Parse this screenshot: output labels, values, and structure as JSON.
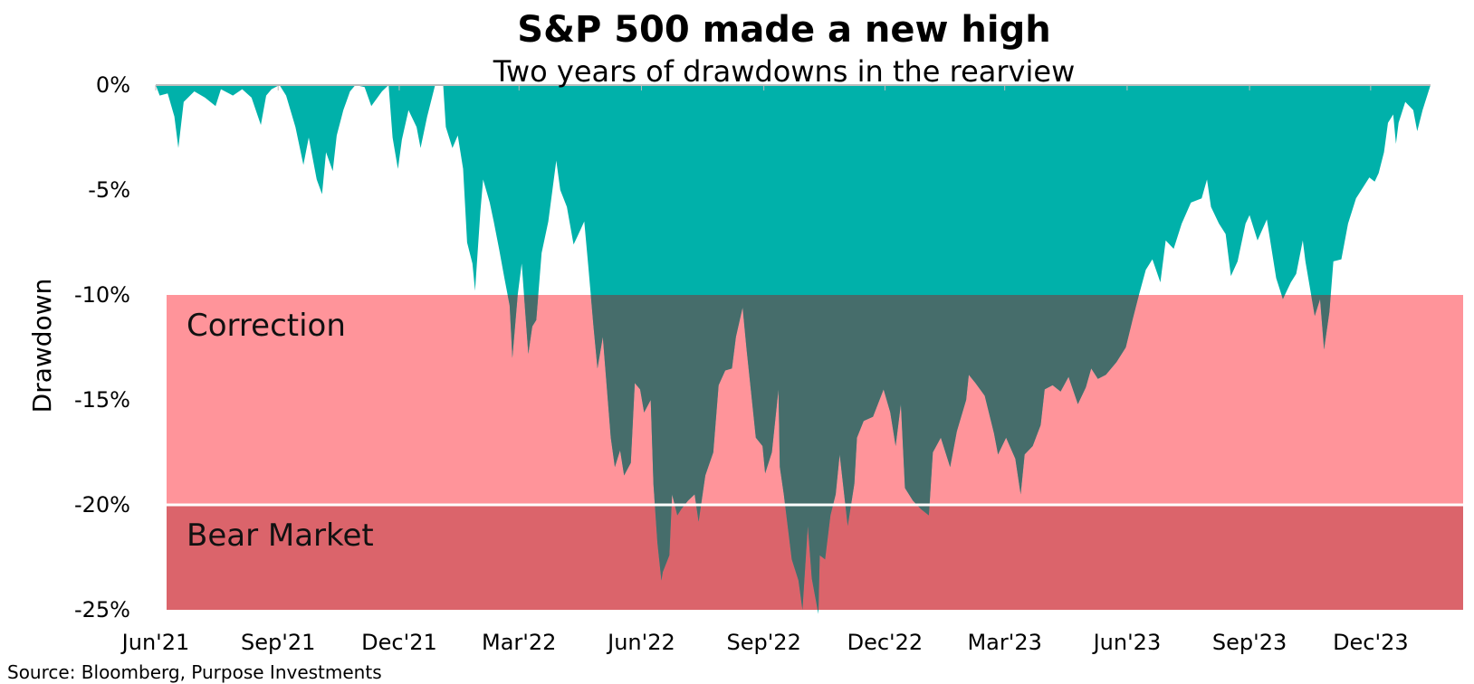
{
  "chart_data": {
    "type": "area",
    "title": "S&P 500 made a new high",
    "subtitle": "Two years of drawdowns in the rearview",
    "xlabel": "",
    "ylabel": "Drawdown",
    "ylim": [
      -25,
      0
    ],
    "yticks": [
      {
        "value": 0,
        "label": "0%"
      },
      {
        "value": -5,
        "label": "-5%"
      },
      {
        "value": -10,
        "label": "-10%"
      },
      {
        "value": -15,
        "label": "-15%"
      },
      {
        "value": -20,
        "label": "-20%"
      },
      {
        "value": -25,
        "label": "-25%"
      }
    ],
    "xlim": [
      "2021-06-01",
      "2024-01-15"
    ],
    "xticks": [
      {
        "date": "2021-06-01",
        "label": "Jun'21"
      },
      {
        "date": "2021-09-01",
        "label": "Sep'21"
      },
      {
        "date": "2021-12-01",
        "label": "Dec'21"
      },
      {
        "date": "2022-03-01",
        "label": "Mar'22"
      },
      {
        "date": "2022-06-01",
        "label": "Jun'22"
      },
      {
        "date": "2022-09-01",
        "label": "Sep'22"
      },
      {
        "date": "2022-12-01",
        "label": "Dec'22"
      },
      {
        "date": "2023-03-01",
        "label": "Mar'23"
      },
      {
        "date": "2023-06-01",
        "label": "Jun'23"
      },
      {
        "date": "2023-09-01",
        "label": "Sep'23"
      },
      {
        "date": "2023-12-01",
        "label": "Dec'23"
      }
    ],
    "zones": [
      {
        "label": "Correction",
        "from": -10,
        "to": -20,
        "color": "#ff949a"
      },
      {
        "label": "Bear Market",
        "from": -20,
        "to": -25,
        "color": "#db646b"
      }
    ],
    "series": [
      {
        "color": "#00b1aa",
        "points": [
          [
            "2021-06-01",
            0
          ],
          [
            "2021-06-04",
            -0.5
          ],
          [
            "2021-06-10",
            -0.4
          ],
          [
            "2021-06-15",
            -1.5
          ],
          [
            "2021-06-18",
            -3
          ],
          [
            "2021-06-22",
            -0.8
          ],
          [
            "2021-06-30",
            -0.3
          ],
          [
            "2021-07-08",
            -0.6
          ],
          [
            "2021-07-16",
            -1
          ],
          [
            "2021-07-20",
            -0.2
          ],
          [
            "2021-07-29",
            -0.5
          ],
          [
            "2021-08-05",
            -0.2
          ],
          [
            "2021-08-12",
            -0.6
          ],
          [
            "2021-08-19",
            -1.9
          ],
          [
            "2021-08-23",
            -0.5
          ],
          [
            "2021-08-27",
            -0.2
          ],
          [
            "2021-09-02",
            0
          ],
          [
            "2021-09-07",
            -0.5
          ],
          [
            "2021-09-14",
            -2
          ],
          [
            "2021-09-20",
            -3.8
          ],
          [
            "2021-09-24",
            -2.5
          ],
          [
            "2021-09-30",
            -4.5
          ],
          [
            "2021-10-04",
            -5.2
          ],
          [
            "2021-10-07",
            -3.2
          ],
          [
            "2021-10-12",
            -4.1
          ],
          [
            "2021-10-15",
            -2.4
          ],
          [
            "2021-10-20",
            -1.2
          ],
          [
            "2021-10-25",
            -0.3
          ],
          [
            "2021-10-29",
            0
          ],
          [
            "2021-11-05",
            -0.1
          ],
          [
            "2021-11-10",
            -1
          ],
          [
            "2021-11-18",
            -0.3
          ],
          [
            "2021-11-23",
            0
          ],
          [
            "2021-11-26",
            -2.5
          ],
          [
            "2021-11-30",
            -4
          ],
          [
            "2021-12-03",
            -2.6
          ],
          [
            "2021-12-08",
            -1.2
          ],
          [
            "2021-12-14",
            -2
          ],
          [
            "2021-12-17",
            -3
          ],
          [
            "2021-12-22",
            -1.5
          ],
          [
            "2021-12-28",
            0
          ],
          [
            "2022-01-03",
            0
          ],
          [
            "2022-01-05",
            -2
          ],
          [
            "2022-01-10",
            -3
          ],
          [
            "2022-01-14",
            -2.4
          ],
          [
            "2022-01-18",
            -4
          ],
          [
            "2022-01-21",
            -7.5
          ],
          [
            "2022-01-25",
            -8.5
          ],
          [
            "2022-01-27",
            -9.8
          ],
          [
            "2022-01-31",
            -6
          ],
          [
            "2022-02-02",
            -4.5
          ],
          [
            "2022-02-07",
            -5.6
          ],
          [
            "2022-02-10",
            -6.5
          ],
          [
            "2022-02-14",
            -7.8
          ],
          [
            "2022-02-18",
            -9.2
          ],
          [
            "2022-02-22",
            -10.5
          ],
          [
            "2022-02-24",
            -13
          ],
          [
            "2022-02-28",
            -10
          ],
          [
            "2022-03-03",
            -8.5
          ],
          [
            "2022-03-08",
            -12.8
          ],
          [
            "2022-03-11",
            -11.5
          ],
          [
            "2022-03-14",
            -11.2
          ],
          [
            "2022-03-18",
            -8
          ],
          [
            "2022-03-23",
            -6.5
          ],
          [
            "2022-03-29",
            -3.6
          ],
          [
            "2022-04-01",
            -5
          ],
          [
            "2022-04-06",
            -5.8
          ],
          [
            "2022-04-11",
            -7.6
          ],
          [
            "2022-04-14",
            -7.2
          ],
          [
            "2022-04-19",
            -6.5
          ],
          [
            "2022-04-22",
            -8.6
          ],
          [
            "2022-04-26",
            -11.5
          ],
          [
            "2022-04-29",
            -13.5
          ],
          [
            "2022-05-03",
            -12
          ],
          [
            "2022-05-06",
            -14.4
          ],
          [
            "2022-05-09",
            -16.8
          ],
          [
            "2022-05-12",
            -18.2
          ],
          [
            "2022-05-16",
            -17.4
          ],
          [
            "2022-05-19",
            -18.6
          ],
          [
            "2022-05-24",
            -18
          ],
          [
            "2022-05-27",
            -14.2
          ],
          [
            "2022-05-31",
            -14.5
          ],
          [
            "2022-06-03",
            -15.6
          ],
          [
            "2022-06-08",
            -15
          ],
          [
            "2022-06-10",
            -19
          ],
          [
            "2022-06-13",
            -21.8
          ],
          [
            "2022-06-16",
            -23.6
          ],
          [
            "2022-06-17",
            -23.2
          ],
          [
            "2022-06-22",
            -22.4
          ],
          [
            "2022-06-24",
            -19.5
          ],
          [
            "2022-06-28",
            -20.5
          ],
          [
            "2022-07-01",
            -20.2
          ],
          [
            "2022-07-06",
            -19.8
          ],
          [
            "2022-07-11",
            -19.5
          ],
          [
            "2022-07-14",
            -20.8
          ],
          [
            "2022-07-19",
            -18.6
          ],
          [
            "2022-07-25",
            -17.5
          ],
          [
            "2022-07-29",
            -14.3
          ],
          [
            "2022-08-03",
            -13.6
          ],
          [
            "2022-08-08",
            -13.5
          ],
          [
            "2022-08-11",
            -12
          ],
          [
            "2022-08-16",
            -10.6
          ],
          [
            "2022-08-19",
            -12.6
          ],
          [
            "2022-08-22",
            -14.4
          ],
          [
            "2022-08-26",
            -16.8
          ],
          [
            "2022-08-31",
            -17.2
          ],
          [
            "2022-09-02",
            -18.5
          ],
          [
            "2022-09-07",
            -17.5
          ],
          [
            "2022-09-12",
            -14.5
          ],
          [
            "2022-09-13",
            -18.2
          ],
          [
            "2022-09-16",
            -19.5
          ],
          [
            "2022-09-22",
            -22.6
          ],
          [
            "2022-09-27",
            -23.6
          ],
          [
            "2022-09-30",
            -25
          ],
          [
            "2022-10-04",
            -21
          ],
          [
            "2022-10-07",
            -23.5
          ],
          [
            "2022-10-12",
            -25.2
          ],
          [
            "2022-10-13",
            -22.4
          ],
          [
            "2022-10-17",
            -22.6
          ],
          [
            "2022-10-21",
            -20.5
          ],
          [
            "2022-10-25",
            -19.5
          ],
          [
            "2022-10-28",
            -17.6
          ],
          [
            "2022-11-03",
            -21
          ],
          [
            "2022-11-08",
            -19
          ],
          [
            "2022-11-10",
            -16.8
          ],
          [
            "2022-11-15",
            -16
          ],
          [
            "2022-11-22",
            -15.8
          ],
          [
            "2022-11-30",
            -14.5
          ],
          [
            "2022-12-05",
            -15.6
          ],
          [
            "2022-12-09",
            -17.2
          ],
          [
            "2022-12-13",
            -15.2
          ],
          [
            "2022-12-16",
            -19.2
          ],
          [
            "2022-12-22",
            -19.8
          ],
          [
            "2022-12-28",
            -20.2
          ],
          [
            "2023-01-03",
            -20.5
          ],
          [
            "2023-01-06",
            -17.5
          ],
          [
            "2023-01-12",
            -16.8
          ],
          [
            "2023-01-19",
            -18.2
          ],
          [
            "2023-01-24",
            -16.5
          ],
          [
            "2023-01-31",
            -15
          ],
          [
            "2023-02-02",
            -13.8
          ],
          [
            "2023-02-07",
            -14.2
          ],
          [
            "2023-02-14",
            -14.8
          ],
          [
            "2023-02-21",
            -16.6
          ],
          [
            "2023-02-24",
            -17.6
          ],
          [
            "2023-03-02",
            -16.8
          ],
          [
            "2023-03-09",
            -17.8
          ],
          [
            "2023-03-13",
            -19.5
          ],
          [
            "2023-03-16",
            -17.6
          ],
          [
            "2023-03-22",
            -17.2
          ],
          [
            "2023-03-28",
            -16.2
          ],
          [
            "2023-03-31",
            -14.5
          ],
          [
            "2023-04-06",
            -14.3
          ],
          [
            "2023-04-12",
            -14.6
          ],
          [
            "2023-04-18",
            -13.9
          ],
          [
            "2023-04-25",
            -15.2
          ],
          [
            "2023-05-01",
            -14.4
          ],
          [
            "2023-05-05",
            -13.5
          ],
          [
            "2023-05-10",
            -14
          ],
          [
            "2023-05-16",
            -13.8
          ],
          [
            "2023-05-24",
            -13.2
          ],
          [
            "2023-05-31",
            -12.5
          ],
          [
            "2023-06-05",
            -11.2
          ],
          [
            "2023-06-09",
            -10.2
          ],
          [
            "2023-06-15",
            -8.8
          ],
          [
            "2023-06-20",
            -8.3
          ],
          [
            "2023-06-26",
            -9.4
          ],
          [
            "2023-06-30",
            -7.4
          ],
          [
            "2023-07-06",
            -7.8
          ],
          [
            "2023-07-12",
            -6.6
          ],
          [
            "2023-07-19",
            -5.6
          ],
          [
            "2023-07-27",
            -5.4
          ],
          [
            "2023-07-31",
            -4.5
          ],
          [
            "2023-08-03",
            -5.8
          ],
          [
            "2023-08-09",
            -6.6
          ],
          [
            "2023-08-14",
            -7.1
          ],
          [
            "2023-08-18",
            -9.1
          ],
          [
            "2023-08-23",
            -8.4
          ],
          [
            "2023-08-29",
            -6.6
          ],
          [
            "2023-09-01",
            -6.2
          ],
          [
            "2023-09-07",
            -7.4
          ],
          [
            "2023-09-14",
            -6.4
          ],
          [
            "2023-09-21",
            -9.2
          ],
          [
            "2023-09-26",
            -10.2
          ],
          [
            "2023-10-02",
            -9.4
          ],
          [
            "2023-10-06",
            -9
          ],
          [
            "2023-10-11",
            -7.4
          ],
          [
            "2023-10-13",
            -8.4
          ],
          [
            "2023-10-20",
            -11
          ],
          [
            "2023-10-24",
            -10.2
          ],
          [
            "2023-10-27",
            -12.6
          ],
          [
            "2023-10-31",
            -10.8
          ],
          [
            "2023-11-03",
            -8.4
          ],
          [
            "2023-11-09",
            -8.3
          ],
          [
            "2023-11-14",
            -6.6
          ],
          [
            "2023-11-20",
            -5.4
          ],
          [
            "2023-11-24",
            -5
          ],
          [
            "2023-11-30",
            -4.4
          ],
          [
            "2023-12-04",
            -4.6
          ],
          [
            "2023-12-07",
            -4.2
          ],
          [
            "2023-12-11",
            -3.2
          ],
          [
            "2023-12-14",
            -1.8
          ],
          [
            "2023-12-18",
            -1.4
          ],
          [
            "2023-12-20",
            -2.8
          ],
          [
            "2023-12-22",
            -1.8
          ],
          [
            "2023-12-27",
            -0.8
          ],
          [
            "2024-01-02",
            -1.2
          ],
          [
            "2024-01-05",
            -2.2
          ],
          [
            "2024-01-09",
            -1.2
          ],
          [
            "2024-01-12",
            -0.6
          ],
          [
            "2024-01-15",
            0
          ]
        ]
      }
    ],
    "grid": false,
    "source": "Source: Bloomberg, Purpose Investments"
  }
}
